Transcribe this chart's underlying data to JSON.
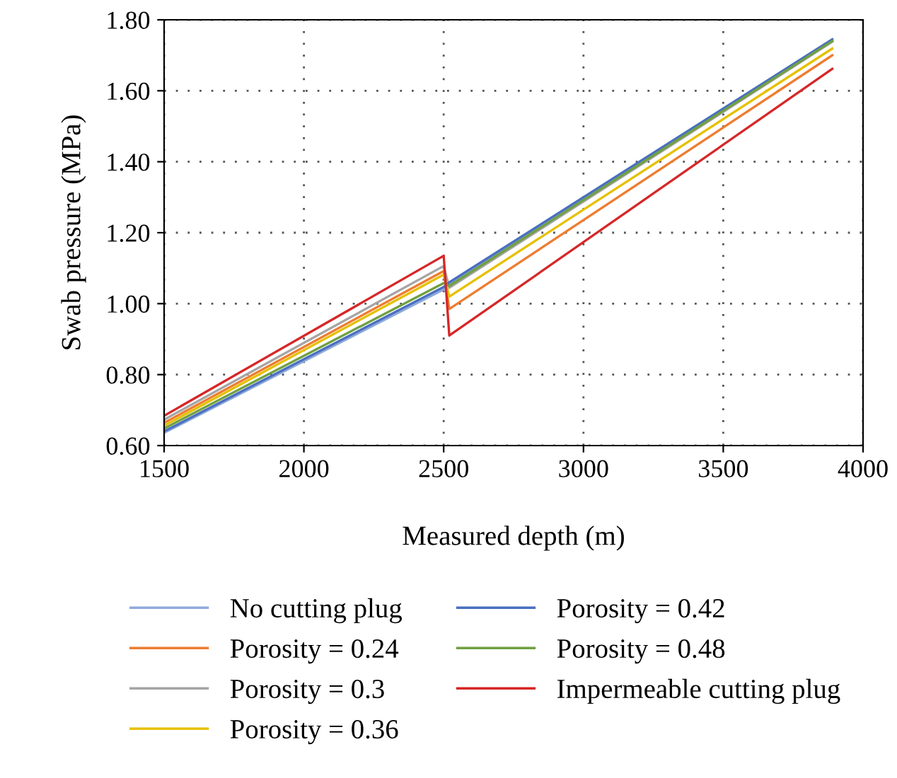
{
  "chart_data": {
    "type": "line",
    "xlabel": "Measured depth (m)",
    "ylabel": "Swab pressure (MPa)",
    "x": [
      1500,
      2500,
      2520,
      3890
    ],
    "series": [
      {
        "name": "No cutting plug",
        "color": "#8faadc",
        "values": [
          0.636,
          1.04,
          1.055,
          1.742
        ]
      },
      {
        "name": "Porosity = 0.24",
        "color": "#ed7d31",
        "values": [
          0.664,
          1.092,
          0.985,
          1.7
        ]
      },
      {
        "name": "Porosity = 0.3",
        "color": "#a5a5a5",
        "values": [
          0.673,
          1.106,
          1.045,
          1.738
        ]
      },
      {
        "name": "Porosity = 0.36",
        "color": "#e6c000",
        "values": [
          0.656,
          1.082,
          1.02,
          1.719
        ]
      },
      {
        "name": "Porosity = 0.42",
        "color": "#4a6fc1",
        "values": [
          0.64,
          1.047,
          1.06,
          1.745
        ]
      },
      {
        "name": "Porosity = 0.48",
        "color": "#70a040",
        "values": [
          0.648,
          1.058,
          1.05,
          1.74
        ]
      },
      {
        "name": "Impermeable cutting plug",
        "color": "#d62728",
        "values": [
          0.684,
          1.135,
          0.91,
          1.662
        ]
      }
    ],
    "xlim": [
      1500,
      4000
    ],
    "xticks": [
      1500,
      2000,
      2500,
      3000,
      3500,
      4000
    ],
    "ylim": [
      0.6,
      1.8
    ],
    "yticks": [
      {
        "value": 0.6,
        "label": "0.60"
      },
      {
        "value": 0.8,
        "label": "0.80"
      },
      {
        "value": 1.0,
        "label": "1.00"
      },
      {
        "value": 1.2,
        "label": "1.20"
      },
      {
        "value": 1.4,
        "label": "1.40"
      },
      {
        "value": 1.6,
        "label": "1.60"
      },
      {
        "value": 1.8,
        "label": "1.80"
      }
    ],
    "grid": true,
    "legend": "bottom",
    "line_style": "solid"
  }
}
